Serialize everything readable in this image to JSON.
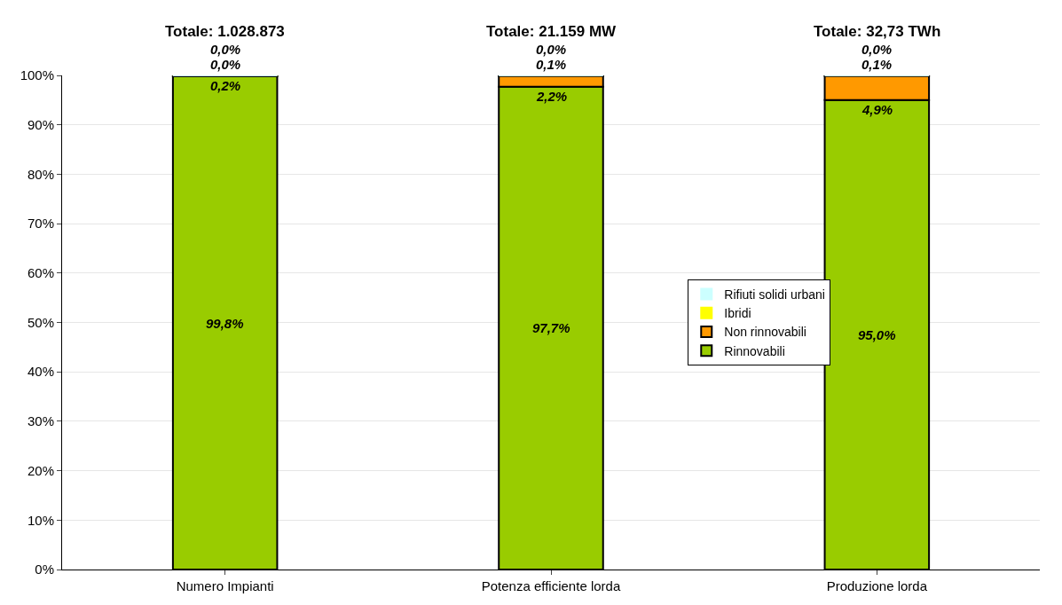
{
  "chart_data": {
    "type": "bar",
    "stacked": true,
    "categories": [
      "Numero Impianti",
      "Potenza efficiente lorda",
      "Produzione lorda"
    ],
    "series": [
      {
        "name": "Rinnovabili",
        "color": "#99cc00",
        "values": [
          99.8,
          97.7,
          95.0
        ],
        "value_labels": [
          "99,8%",
          "97,7%",
          "95,0%"
        ]
      },
      {
        "name": "Non rinnovabili",
        "color": "#ff9900",
        "values": [
          0.2,
          2.2,
          4.9
        ],
        "value_labels": [
          "0,2%",
          "2,2%",
          "4,9%"
        ]
      },
      {
        "name": "Ibridi",
        "color": "#ffff00",
        "values": [
          0.0,
          0.1,
          0.1
        ],
        "value_labels": [
          "0,0%",
          "0,1%",
          "0,1%"
        ]
      },
      {
        "name": "Rifiuti solidi urbani",
        "color": "#ccffff",
        "values": [
          0.0,
          0.0,
          0.0
        ],
        "value_labels": [
          "0,0%",
          "0,0%",
          "0,0%"
        ]
      }
    ],
    "annotations": [
      "Totale: 1.028.873",
      "Totale: 21.159 MW",
      "Totale: 32,73 TWh"
    ],
    "ylim": [
      0,
      100
    ],
    "yticks": [
      {
        "value": 0,
        "label": "0%"
      },
      {
        "value": 10,
        "label": "10%"
      },
      {
        "value": 20,
        "label": "20%"
      },
      {
        "value": 30,
        "label": "30%"
      },
      {
        "value": 40,
        "label": "40%"
      },
      {
        "value": 50,
        "label": "50%"
      },
      {
        "value": 60,
        "label": "60%"
      },
      {
        "value": 70,
        "label": "70%"
      },
      {
        "value": 80,
        "label": "80%"
      },
      {
        "value": 90,
        "label": "90%"
      },
      {
        "value": 100,
        "label": "100%"
      }
    ],
    "grid": "y",
    "legend": "right"
  }
}
